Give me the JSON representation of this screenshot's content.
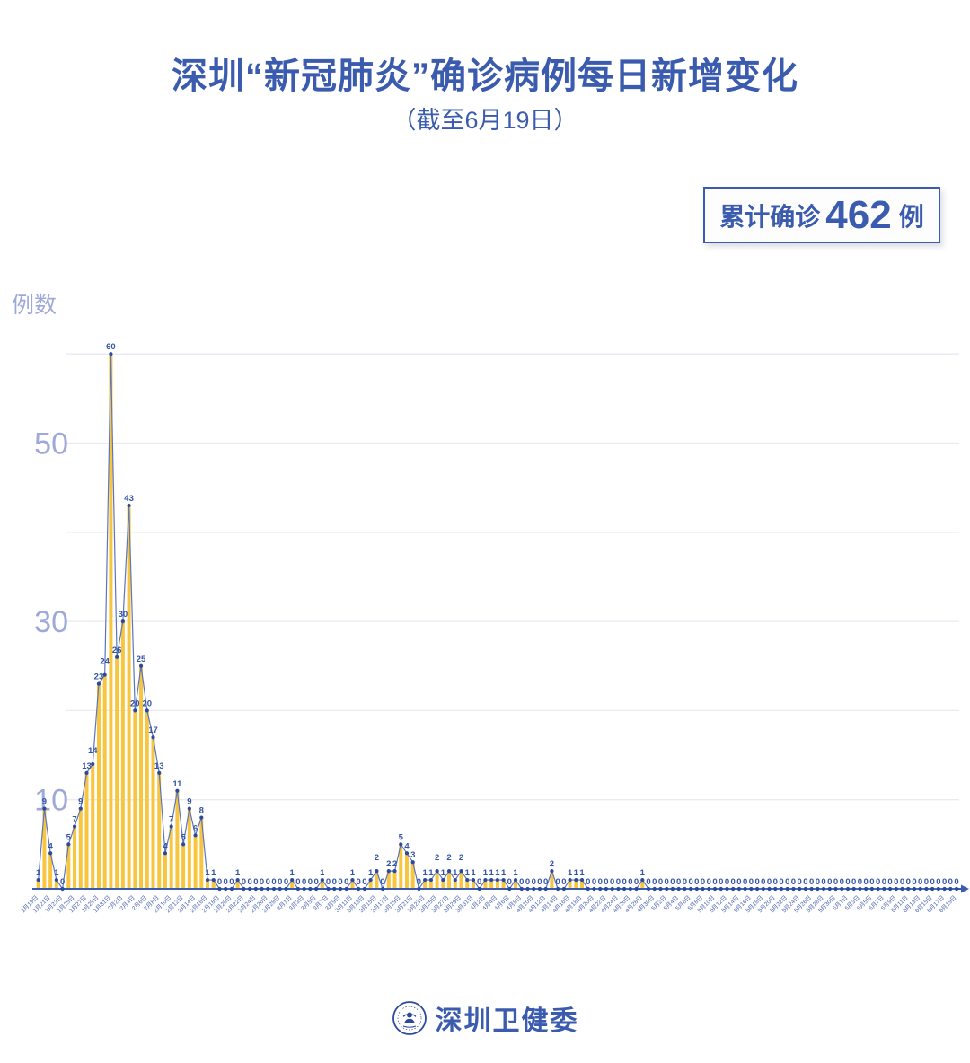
{
  "title": "深圳“新冠肺炎”确诊病例每日新增变化",
  "subtitle": "（截至6月19日）",
  "badge": {
    "prefix": "累计确诊",
    "value": "462",
    "suffix": "例"
  },
  "footer": {
    "org": "深圳卫健委",
    "logo": "shenzhen-health-commission-emblem"
  },
  "colors": {
    "accent_blue": "#3A5BAE",
    "label_blue": "#3554A6",
    "periwinkle": "#9FA9D8",
    "bar_yellow": "#F8C53F",
    "line_blue": "#5B76BE",
    "dot_navy": "#2C4A9C",
    "gridline": "#EAEAF2",
    "axis": "#3A5BAE"
  },
  "chart_data": {
    "type": "bar",
    "overlay": "line+points+value-labels",
    "title": "深圳“新冠肺炎”确诊病例每日新增变化",
    "xlabel": "",
    "ylabel": "例数",
    "ylim": [
      0,
      62
    ],
    "y_ticks": [
      10,
      30,
      50
    ],
    "gridlines": [
      10,
      20,
      30,
      40,
      50,
      60
    ],
    "legend": "none",
    "x_tick_every": 2,
    "x_tick_format": "{month}月{day}日",
    "date_ranges": [
      {
        "month": 1,
        "from": 19,
        "to": 31
      },
      {
        "month": 2,
        "from": 1,
        "to": 29
      },
      {
        "month": 3,
        "from": 1,
        "to": 31
      },
      {
        "month": 4,
        "from": 1,
        "to": 30
      },
      {
        "month": 5,
        "from": 1,
        "to": 31
      },
      {
        "month": 6,
        "from": 1,
        "to": 19
      }
    ],
    "total": 462,
    "values": [
      1,
      9,
      4,
      1,
      0,
      5,
      7,
      9,
      13,
      14,
      23,
      24,
      60,
      26,
      30,
      43,
      20,
      25,
      20,
      17,
      13,
      4,
      7,
      11,
      5,
      9,
      6,
      8,
      1,
      1,
      0,
      0,
      0,
      1,
      0,
      0,
      0,
      0,
      0,
      0,
      0,
      0,
      1,
      0,
      0,
      0,
      0,
      1,
      0,
      0,
      0,
      0,
      1,
      0,
      0,
      1,
      2,
      0,
      2,
      2,
      5,
      4,
      3,
      0,
      1,
      1,
      2,
      1,
      2,
      1,
      2,
      1,
      1,
      0,
      1,
      1,
      1,
      1,
      0,
      1,
      0,
      0,
      0,
      0,
      0,
      2,
      0,
      0,
      1,
      1,
      1,
      0,
      0,
      0,
      0,
      0,
      0,
      0,
      0,
      0,
      1,
      0,
      0,
      0,
      0,
      0,
      0,
      0,
      0,
      0,
      0,
      0,
      0,
      0,
      0,
      0,
      0,
      0,
      0,
      0,
      0,
      0,
      0,
      0,
      0,
      0,
      0,
      0,
      0,
      0,
      0,
      0,
      0,
      0,
      0,
      0,
      0,
      0,
      0,
      0,
      0,
      0,
      0,
      0,
      0,
      0,
      0,
      0,
      0,
      0,
      0,
      0,
      0
    ]
  }
}
